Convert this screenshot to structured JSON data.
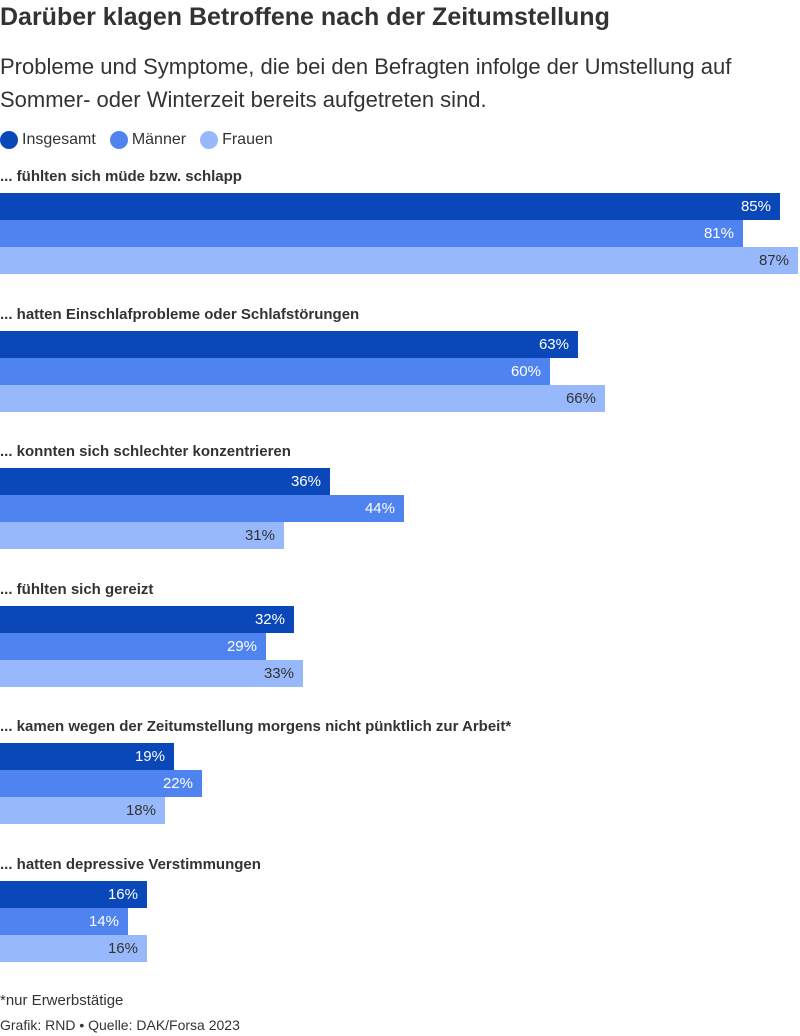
{
  "title": "Darüber klagen Betroffene nach der Zeitumstellung",
  "subtitle": "Probleme und Symptome, die bei den Befragten infolge der Umstellung auf Sommer- oder Winterzeit bereits aufgetreten sind.",
  "footnote": "*nur Erwerbstätige",
  "source": "Grafik: RND • Quelle: DAK/Forsa 2023",
  "colors": {
    "insgesamt": "#0a47b8",
    "maenner": "#4f84f0",
    "frauen": "#97b8fb",
    "text": "#333333"
  },
  "chart_data": {
    "type": "bar",
    "orientation": "horizontal",
    "unit": "%",
    "xlim": [
      0,
      87
    ],
    "legend": "top-left",
    "grid": false,
    "categories": [
      "... fühlten sich müde bzw. schlapp",
      "... hatten Einschlafprobleme oder Schlafstörungen",
      "... konnten sich schlechter konzentrieren",
      "... fühlten sich gereizt",
      "... kamen wegen der Zeitumstellung morgens nicht pünktlich zur Arbeit*",
      "... hatten depressive Verstimmungen"
    ],
    "series": [
      {
        "name": "Insgesamt",
        "color": "#0a47b8",
        "values": [
          85,
          63,
          36,
          32,
          19,
          16
        ]
      },
      {
        "name": "Männer",
        "color": "#4f84f0",
        "values": [
          81,
          60,
          44,
          29,
          22,
          14
        ]
      },
      {
        "name": "Frauen",
        "color": "#97b8fb",
        "values": [
          87,
          66,
          31,
          33,
          18,
          16
        ]
      }
    ]
  }
}
